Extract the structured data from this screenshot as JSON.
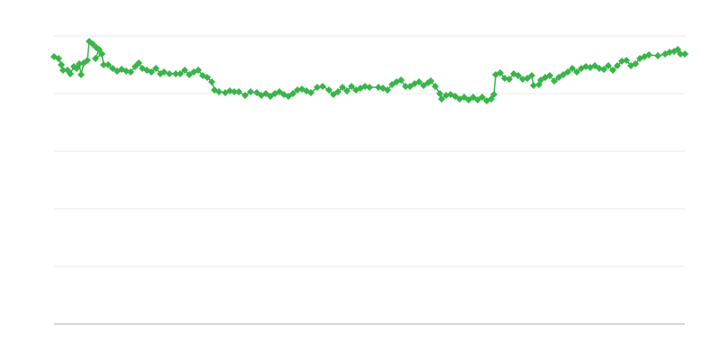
{
  "chart_data": {
    "type": "line",
    "title": "",
    "xlabel": "",
    "ylabel": "",
    "xlim": [
      0,
      700
    ],
    "ylim": [
      0,
      320
    ],
    "y_gridlines": [
      0,
      64,
      128,
      192,
      256,
      320
    ],
    "grid": true,
    "legend": "none",
    "markers": "diamond",
    "colors": {
      "series": "#39b54a",
      "grid": "#ebebeb",
      "axis": "#b0b0b0"
    },
    "series": [
      {
        "points": [
          [
            0,
            297
          ],
          [
            5,
            295
          ],
          [
            8,
            288
          ],
          [
            10,
            282
          ],
          [
            15,
            282
          ],
          [
            18,
            278
          ],
          [
            22,
            286
          ],
          [
            25,
            284
          ],
          [
            28,
            289
          ],
          [
            30,
            277
          ],
          [
            33,
            290
          ],
          [
            37,
            293
          ],
          [
            39,
            314
          ],
          [
            43,
            311
          ],
          [
            47,
            307
          ],
          [
            50,
            305
          ],
          [
            46,
            295
          ],
          [
            53,
            300
          ],
          [
            55,
            288
          ],
          [
            60,
            288
          ],
          [
            65,
            284
          ],
          [
            70,
            281
          ],
          [
            75,
            283
          ],
          [
            80,
            281
          ],
          [
            85,
            280
          ],
          [
            90,
            286
          ],
          [
            94,
            290
          ],
          [
            98,
            284
          ],
          [
            103,
            282
          ],
          [
            108,
            280
          ],
          [
            113,
            284
          ],
          [
            118,
            278
          ],
          [
            122,
            280
          ],
          [
            128,
            278
          ],
          [
            135,
            278
          ],
          [
            140,
            278
          ],
          [
            145,
            282
          ],
          [
            150,
            277
          ],
          [
            155,
            280
          ],
          [
            160,
            282
          ],
          [
            165,
            276
          ],
          [
            170,
            274
          ],
          [
            175,
            269
          ],
          [
            178,
            260
          ],
          [
            183,
            258
          ],
          [
            190,
            257
          ],
          [
            195,
            259
          ],
          [
            200,
            258
          ],
          [
            205,
            258
          ],
          [
            212,
            254
          ],
          [
            218,
            258
          ],
          [
            225,
            257
          ],
          [
            230,
            254
          ],
          [
            235,
            256
          ],
          [
            240,
            253
          ],
          [
            245,
            256
          ],
          [
            250,
            258
          ],
          [
            255,
            255
          ],
          [
            260,
            253
          ],
          [
            265,
            256
          ],
          [
            270,
            260
          ],
          [
            275,
            261
          ],
          [
            280,
            259
          ],
          [
            285,
            257
          ],
          [
            292,
            263
          ],
          [
            298,
            264
          ],
          [
            305,
            260
          ],
          [
            310,
            255
          ],
          [
            315,
            258
          ],
          [
            320,
            263
          ],
          [
            325,
            259
          ],
          [
            330,
            264
          ],
          [
            335,
            260
          ],
          [
            340,
            262
          ],
          [
            345,
            264
          ],
          [
            350,
            263
          ],
          [
            360,
            263
          ],
          [
            365,
            262
          ],
          [
            370,
            260
          ],
          [
            375,
            266
          ],
          [
            380,
            269
          ],
          [
            385,
            271
          ],
          [
            390,
            264
          ],
          [
            395,
            264
          ],
          [
            400,
            267
          ],
          [
            405,
            269
          ],
          [
            410,
            265
          ],
          [
            415,
            268
          ],
          [
            418,
            270
          ],
          [
            423,
            264
          ],
          [
            428,
            256
          ],
          [
            430,
            250
          ],
          [
            435,
            254
          ],
          [
            440,
            255
          ],
          [
            445,
            253
          ],
          [
            450,
            250
          ],
          [
            455,
            252
          ],
          [
            460,
            249
          ],
          [
            465,
            252
          ],
          [
            470,
            249
          ],
          [
            475,
            252
          ],
          [
            480,
            248
          ],
          [
            485,
            250
          ],
          [
            488,
            255
          ],
          [
            490,
            277
          ],
          [
            495,
            279
          ],
          [
            500,
            273
          ],
          [
            505,
            272
          ],
          [
            510,
            278
          ],
          [
            515,
            276
          ],
          [
            520,
            272
          ],
          [
            525,
            273
          ],
          [
            530,
            276
          ],
          [
            532,
            265
          ],
          [
            538,
            266
          ],
          [
            540,
            271
          ],
          [
            545,
            274
          ],
          [
            550,
            276
          ],
          [
            555,
            270
          ],
          [
            560,
            274
          ],
          [
            565,
            277
          ],
          [
            570,
            280
          ],
          [
            575,
            284
          ],
          [
            580,
            280
          ],
          [
            585,
            284
          ],
          [
            590,
            286
          ],
          [
            595,
            285
          ],
          [
            600,
            287
          ],
          [
            605,
            284
          ],
          [
            610,
            283
          ],
          [
            615,
            287
          ],
          [
            620,
            282
          ],
          [
            625,
            287
          ],
          [
            630,
            292
          ],
          [
            635,
            293
          ],
          [
            640,
            287
          ],
          [
            645,
            289
          ],
          [
            650,
            295
          ],
          [
            655,
            297
          ],
          [
            660,
            299
          ],
          [
            670,
            298
          ],
          [
            678,
            300
          ],
          [
            683,
            302
          ],
          [
            688,
            303
          ],
          [
            692,
            305
          ],
          [
            695,
            300
          ],
          [
            700,
            300
          ]
        ]
      }
    ]
  }
}
